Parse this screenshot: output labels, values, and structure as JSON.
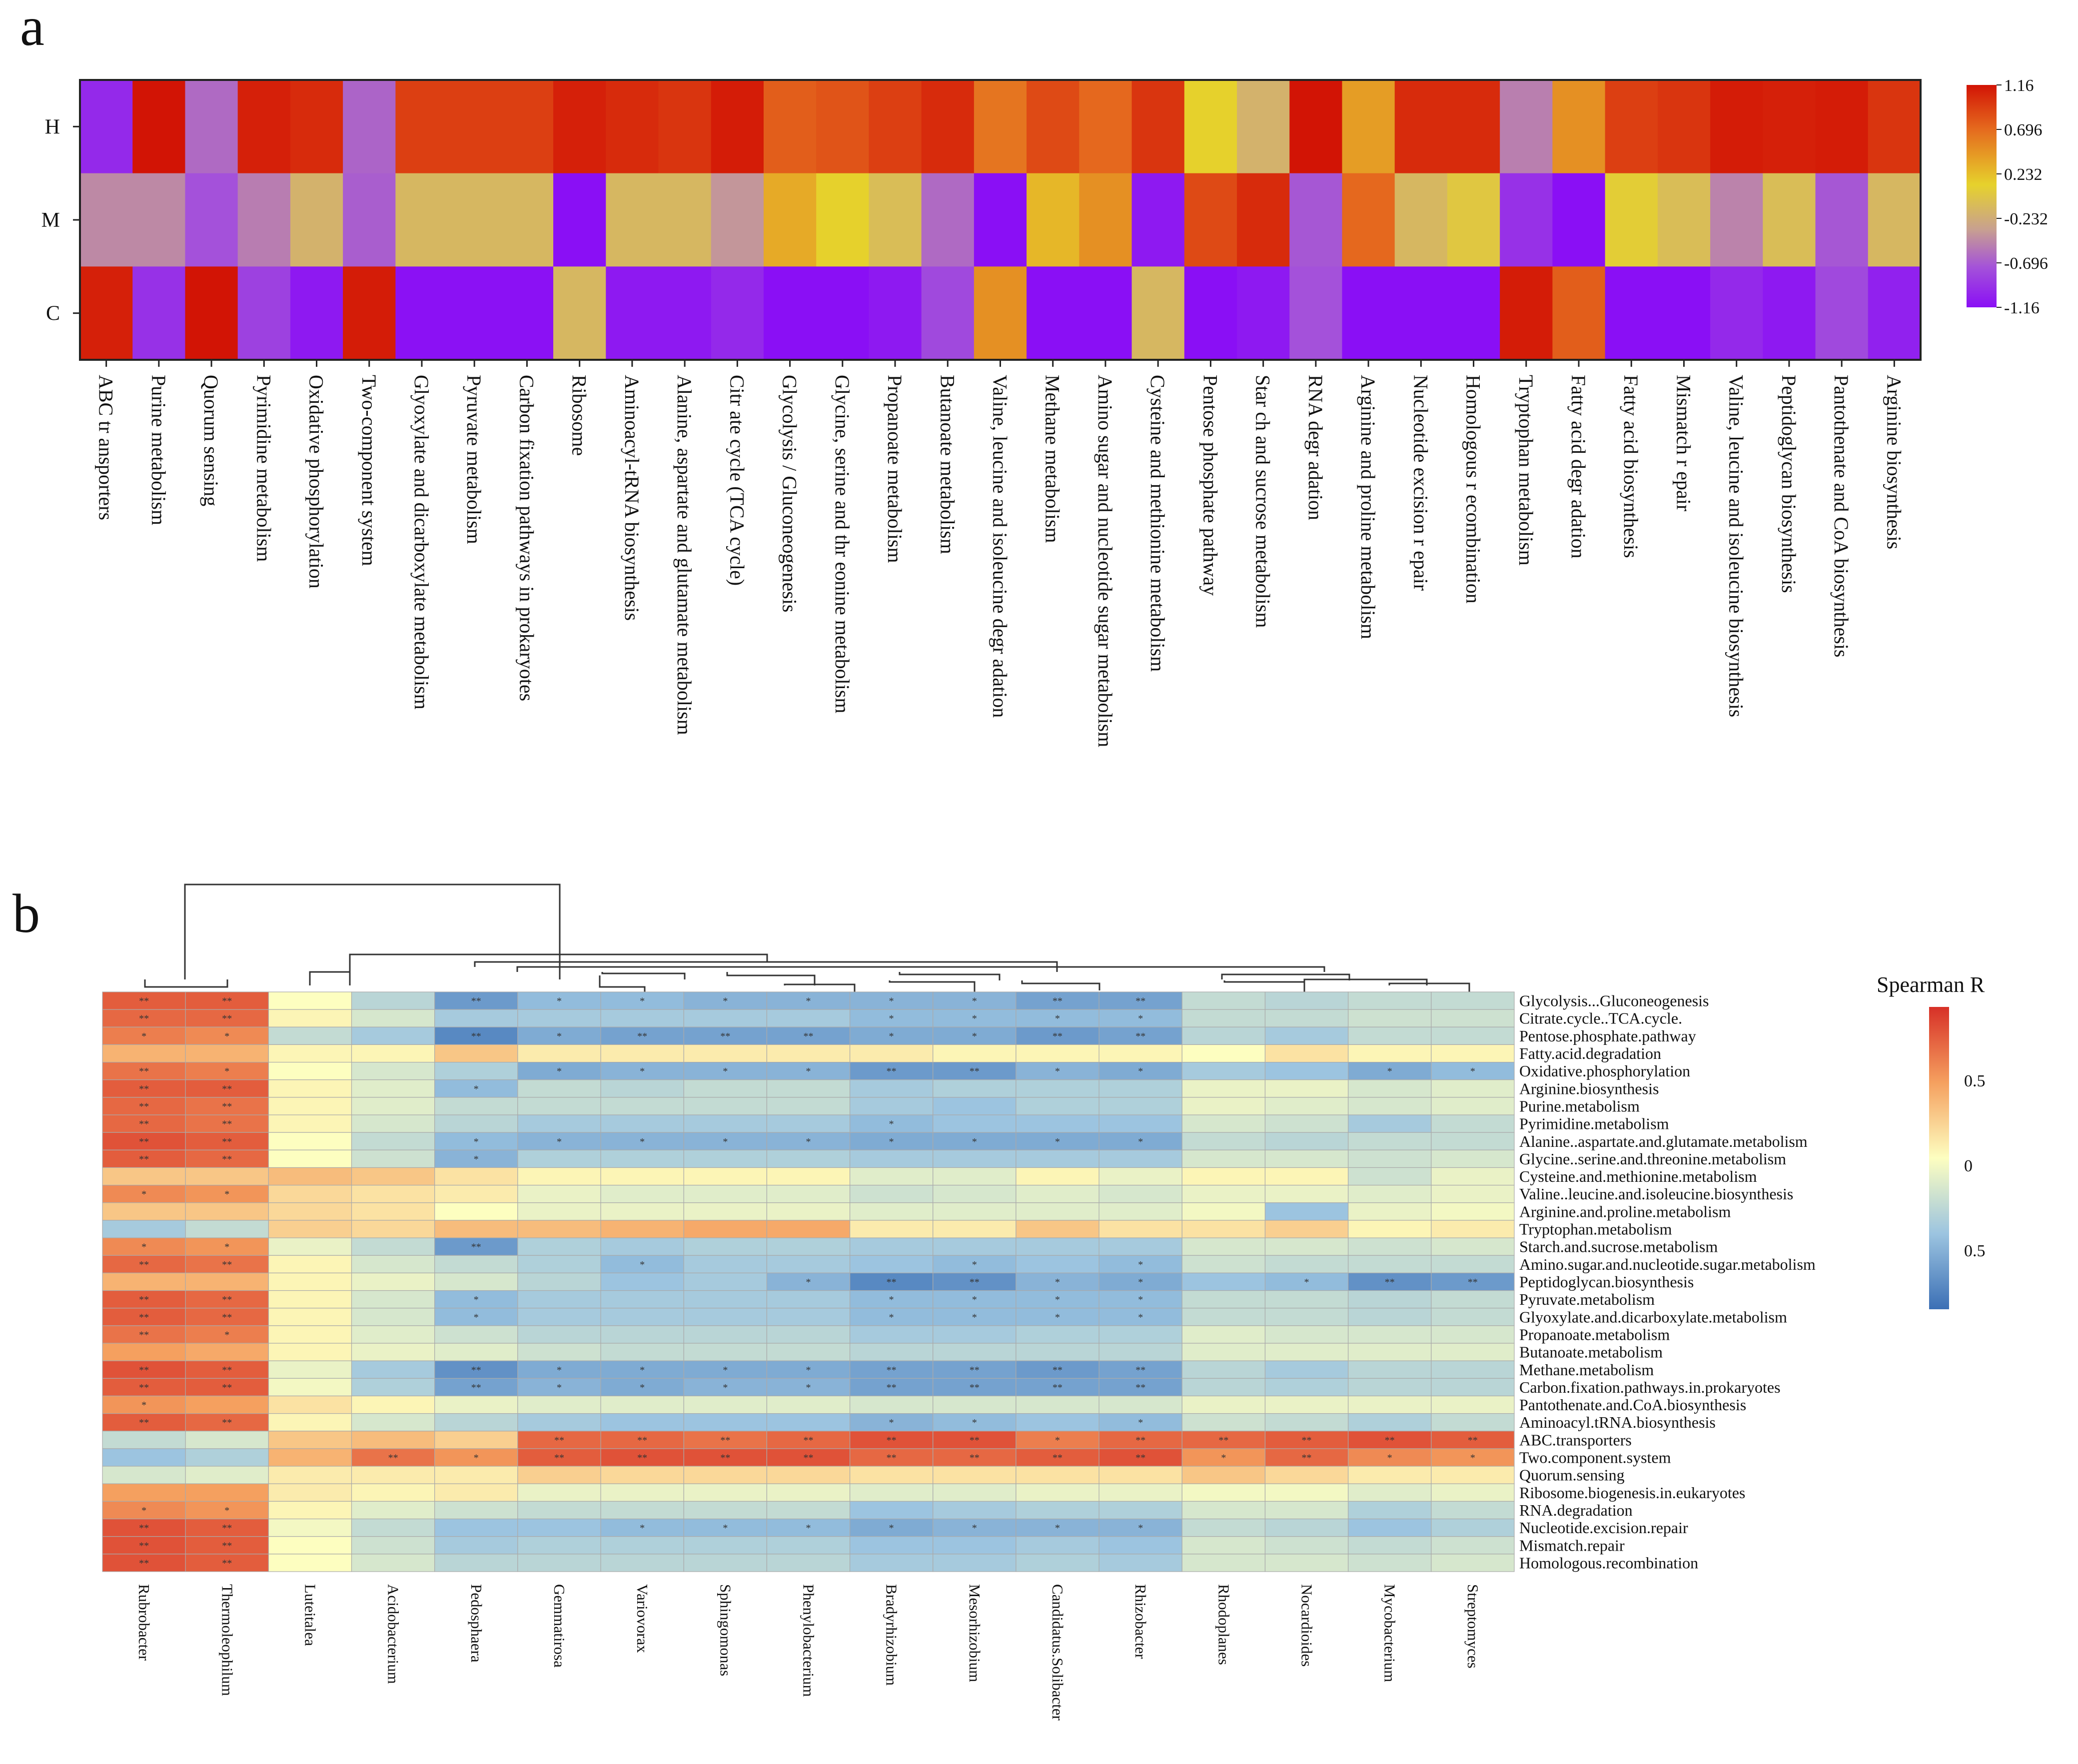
{
  "panel_a_letter": "a",
  "panel_b_letter": "b",
  "chart_data": [
    {
      "type": "heatmap",
      "panel": "a",
      "rows": [
        "H",
        "M",
        "C"
      ],
      "columns": [
        "ABC tr ansporters",
        "Purine metabolism",
        "Quorum sensing",
        "Pyrimidine metabolism",
        "Oxidative phosphorylation",
        "Two-component system",
        "Glyoxylate and dicarboxylate metabolism",
        "Pyruvate metabolism",
        "Carbon fixation pathways in prokaryotes",
        "Ribosome",
        "Aminoacyl-tRNA biosynthesis",
        "Alanine, aspartate and glutamate metabolism",
        "Citr ate cycle (TCA cycle)",
        "Glycolysis / Gluconeogenesis",
        "Glycine, serine and thr eonine metabolism",
        "Propanoate metabolism",
        "Butanoate metabolism",
        "Valine, leucine and isoleucine degr adation",
        "Methane metabolism",
        "Amino sugar and nucleotide sugar metabolism",
        "Cysteine and methionine metabolism",
        "Pentose phosphate pathway",
        "Star ch and sucrose metabolism",
        "RNA degr adation",
        "Arginine and proline metabolism",
        "Nucleotide excision r epair",
        "Homologous r ecombination",
        "Tryptophan metabolism",
        "Fatty acid degr adation",
        "Fatty acid biosynthesis",
        "Mismatch r epair",
        "Valine, leucine and isoleucine biosynthesis",
        "Peptidoglycan biosynthesis",
        "Pantothenate and CoA biosynthesis",
        "Arginine biosynthesis"
      ],
      "values": [
        [
          -1.0,
          1.16,
          -0.55,
          1.1,
          1.05,
          -0.6,
          0.95,
          0.95,
          0.95,
          1.1,
          1.05,
          1.0,
          1.12,
          0.8,
          0.85,
          0.95,
          1.05,
          0.7,
          0.9,
          0.75,
          1.0,
          0.35,
          0.05,
          1.16,
          0.55,
          1.05,
          1.05,
          -0.38,
          0.6,
          0.95,
          1.0,
          1.12,
          1.1,
          1.12,
          1.0
        ],
        [
          -0.3,
          -0.3,
          -0.75,
          -0.4,
          0.05,
          -0.65,
          0.1,
          0.1,
          0.1,
          -1.16,
          0.1,
          0.1,
          -0.2,
          0.5,
          0.35,
          0.15,
          -0.55,
          -1.16,
          0.45,
          0.6,
          -1.1,
          0.9,
          1.05,
          -0.7,
          0.75,
          0.1,
          0.25,
          -0.95,
          -1.16,
          0.3,
          0.15,
          -0.35,
          0.15,
          -0.7,
          0.1
        ],
        [
          1.1,
          -0.95,
          1.16,
          -0.85,
          -1.1,
          1.12,
          -1.15,
          -1.15,
          -1.15,
          0.1,
          -1.1,
          -1.1,
          -1.0,
          -1.16,
          -1.16,
          -1.1,
          -0.8,
          0.6,
          -1.16,
          -1.16,
          0.1,
          -1.16,
          -1.1,
          -0.75,
          -1.16,
          -1.16,
          -1.16,
          1.12,
          0.8,
          -1.16,
          -1.16,
          -1.0,
          -1.1,
          -0.8,
          -1.05
        ]
      ],
      "colorbar_ticks": [
        "1.16",
        "0.696",
        "0.232",
        "-0.232",
        "-0.696",
        "-1.16"
      ],
      "vmin": -1.16,
      "vmax": 1.16
    },
    {
      "type": "heatmap",
      "panel": "b",
      "legend_title": "Spearman R",
      "colorbar_ticks": [
        "0.5",
        "0",
        "0.5"
      ],
      "columns": [
        "Rubrobacter",
        "Thermoleophilum",
        "Luteitalea",
        "Acidobacterium",
        "Pedosphaera",
        "Gemmatirosa",
        "Variovorax",
        "Sphingomonas",
        "Phenylobacterium",
        "Bradyrhizobium",
        "Mesorhizobium",
        "Candidatus.Solibacter",
        "Rhizobacter",
        "Rhodoplanes",
        "Nocardioides",
        "Mycobacterium",
        "Streptomyces"
      ],
      "rows": [
        "Glycolysis...Gluconeogenesis",
        "Citrate.cycle..TCA.cycle.",
        "Pentose.phosphate.pathway",
        "Fatty.acid.degradation",
        "Oxidative.phosphorylation",
        "Arginine.biosynthesis",
        "Purine.metabolism",
        "Pyrimidine.metabolism",
        "Alanine..aspartate.and.glutamate.metabolism",
        "Glycine..serine.and.threonine.metabolism",
        "Cysteine.and.methionine.metabolism",
        "Valine..leucine.and.isoleucine.biosynthesis",
        "Arginine.and.proline.metabolism",
        "Tryptophan.metabolism",
        "Starch.and.sucrose.metabolism",
        "Amino.sugar.and.nucleotide.sugar.metabolism",
        "Peptidoglycan.biosynthesis",
        "Pyruvate.metabolism",
        "Glyoxylate.and.dicarboxylate.metabolism",
        "Propanoate.metabolism",
        "Butanoate.metabolism",
        "Methane.metabolism",
        "Carbon.fixation.pathways.in.prokaryotes",
        "Pantothenate.and.CoA.biosynthesis",
        "Aminoacyl.tRNA.biosynthesis",
        "ABC.transporters",
        "Two.component.system",
        "Quorum.sensing",
        "Ribosome.biogenesis.in.eukaryotes",
        "RNA.degradation",
        "Nucleotide.excision.repair",
        "Mismatch.repair",
        "Homologous.recombination"
      ],
      "values": [
        [
          0.8,
          0.8,
          0.0,
          -0.35,
          -0.75,
          -0.55,
          -0.55,
          -0.6,
          -0.6,
          -0.6,
          -0.6,
          -0.7,
          -0.7,
          -0.3,
          -0.35,
          -0.3,
          -0.3
        ],
        [
          0.75,
          0.75,
          0.05,
          -0.2,
          -0.45,
          -0.45,
          -0.45,
          -0.45,
          -0.45,
          -0.55,
          -0.55,
          -0.55,
          -0.55,
          -0.3,
          -0.3,
          -0.25,
          -0.25
        ],
        [
          0.65,
          0.6,
          -0.3,
          -0.45,
          -0.85,
          -0.65,
          -0.7,
          -0.7,
          -0.7,
          -0.65,
          -0.65,
          -0.75,
          -0.7,
          -0.35,
          -0.45,
          -0.3,
          -0.3
        ],
        [
          0.4,
          0.4,
          0.05,
          0.05,
          0.3,
          0.1,
          0.1,
          0.1,
          0.1,
          0.1,
          0.05,
          0.05,
          0.05,
          0.0,
          0.15,
          0.05,
          0.05
        ],
        [
          0.7,
          0.65,
          0.0,
          -0.2,
          -0.4,
          -0.65,
          -0.6,
          -0.6,
          -0.6,
          -0.75,
          -0.75,
          -0.6,
          -0.65,
          -0.45,
          -0.5,
          -0.65,
          -0.55
        ],
        [
          0.8,
          0.8,
          0.05,
          -0.15,
          -0.55,
          -0.3,
          -0.35,
          -0.3,
          -0.3,
          -0.45,
          -0.4,
          -0.4,
          -0.4,
          -0.1,
          -0.1,
          -0.2,
          -0.15
        ],
        [
          0.75,
          0.7,
          0.05,
          -0.15,
          -0.3,
          -0.3,
          -0.3,
          -0.3,
          -0.3,
          -0.45,
          -0.5,
          -0.4,
          -0.4,
          -0.1,
          -0.15,
          -0.2,
          -0.15
        ],
        [
          0.75,
          0.7,
          0.05,
          -0.2,
          -0.35,
          -0.45,
          -0.45,
          -0.45,
          -0.45,
          -0.55,
          -0.5,
          -0.5,
          -0.5,
          -0.2,
          -0.25,
          -0.45,
          -0.3
        ],
        [
          0.85,
          0.8,
          0.0,
          -0.3,
          -0.55,
          -0.6,
          -0.6,
          -0.6,
          -0.6,
          -0.65,
          -0.65,
          -0.65,
          -0.65,
          -0.3,
          -0.35,
          -0.3,
          -0.3
        ],
        [
          0.8,
          0.75,
          0.0,
          -0.25,
          -0.6,
          -0.4,
          -0.4,
          -0.4,
          -0.4,
          -0.45,
          -0.45,
          -0.45,
          -0.45,
          -0.2,
          -0.2,
          -0.25,
          -0.2
        ],
        [
          0.3,
          0.3,
          0.35,
          0.3,
          0.15,
          0.05,
          0.05,
          0.05,
          0.05,
          -0.15,
          -0.15,
          0.05,
          -0.1,
          0.05,
          0.05,
          -0.25,
          -0.1
        ],
        [
          0.6,
          0.55,
          0.2,
          0.15,
          0.1,
          -0.1,
          -0.15,
          -0.15,
          -0.15,
          -0.25,
          -0.2,
          -0.15,
          -0.2,
          -0.1,
          -0.1,
          -0.15,
          -0.1
        ],
        [
          0.3,
          0.3,
          0.2,
          0.15,
          0.0,
          -0.1,
          -0.1,
          -0.1,
          -0.1,
          -0.15,
          -0.15,
          -0.15,
          -0.15,
          -0.05,
          -0.5,
          -0.1,
          -0.05
        ],
        [
          -0.45,
          -0.3,
          0.25,
          0.2,
          0.35,
          0.35,
          0.4,
          0.45,
          0.45,
          0.1,
          0.1,
          0.3,
          0.15,
          0.15,
          0.25,
          0.05,
          0.1
        ],
        [
          0.6,
          0.55,
          -0.1,
          -0.3,
          -0.75,
          -0.4,
          -0.45,
          -0.4,
          -0.4,
          -0.45,
          -0.45,
          -0.45,
          -0.45,
          -0.2,
          -0.2,
          -0.25,
          -0.2
        ],
        [
          0.75,
          0.7,
          0.05,
          -0.2,
          -0.3,
          -0.4,
          -0.55,
          -0.45,
          -0.45,
          -0.5,
          -0.55,
          -0.5,
          -0.55,
          -0.25,
          -0.3,
          -0.3,
          -0.3
        ],
        [
          0.4,
          0.4,
          0.05,
          -0.1,
          -0.2,
          -0.35,
          -0.5,
          -0.45,
          -0.6,
          -0.85,
          -0.8,
          -0.6,
          -0.65,
          -0.5,
          -0.55,
          -0.8,
          -0.75
        ],
        [
          0.8,
          0.75,
          0.05,
          -0.2,
          -0.55,
          -0.45,
          -0.45,
          -0.45,
          -0.45,
          -0.55,
          -0.55,
          -0.55,
          -0.55,
          -0.3,
          -0.3,
          -0.35,
          -0.3
        ],
        [
          0.8,
          0.75,
          0.05,
          -0.2,
          -0.55,
          -0.45,
          -0.45,
          -0.45,
          -0.45,
          -0.55,
          -0.55,
          -0.55,
          -0.55,
          -0.3,
          -0.3,
          -0.35,
          -0.3
        ],
        [
          0.7,
          0.65,
          0.05,
          -0.15,
          -0.25,
          -0.35,
          -0.35,
          -0.35,
          -0.35,
          -0.45,
          -0.45,
          -0.4,
          -0.4,
          -0.15,
          -0.2,
          -0.2,
          -0.2
        ],
        [
          0.5,
          0.45,
          0.05,
          -0.1,
          -0.15,
          -0.25,
          -0.3,
          -0.3,
          -0.3,
          -0.35,
          -0.35,
          -0.35,
          -0.35,
          -0.15,
          -0.15,
          -0.15,
          -0.15
        ],
        [
          0.85,
          0.8,
          -0.1,
          -0.45,
          -0.8,
          -0.65,
          -0.65,
          -0.65,
          -0.65,
          -0.7,
          -0.7,
          -0.75,
          -0.7,
          -0.35,
          -0.45,
          -0.35,
          -0.35
        ],
        [
          0.8,
          0.8,
          -0.05,
          -0.4,
          -0.7,
          -0.6,
          -0.65,
          -0.6,
          -0.6,
          -0.7,
          -0.7,
          -0.7,
          -0.7,
          -0.35,
          -0.4,
          -0.35,
          -0.35
        ],
        [
          0.55,
          0.5,
          0.15,
          0.05,
          -0.1,
          -0.15,
          -0.15,
          -0.15,
          -0.15,
          -0.2,
          -0.2,
          -0.2,
          -0.2,
          -0.1,
          -0.1,
          -0.1,
          -0.1
        ],
        [
          0.8,
          0.75,
          0.05,
          -0.2,
          -0.35,
          -0.45,
          -0.5,
          -0.5,
          -0.5,
          -0.6,
          -0.55,
          -0.5,
          -0.55,
          -0.25,
          -0.3,
          -0.4,
          -0.3
        ],
        [
          -0.3,
          -0.2,
          0.3,
          0.35,
          0.25,
          0.75,
          0.75,
          0.7,
          0.75,
          0.85,
          0.85,
          0.65,
          0.75,
          0.75,
          0.8,
          0.85,
          0.8
        ],
        [
          -0.5,
          -0.4,
          0.4,
          0.7,
          0.55,
          0.8,
          0.85,
          0.85,
          0.85,
          0.75,
          0.75,
          0.8,
          0.85,
          0.55,
          0.75,
          0.6,
          0.55
        ],
        [
          -0.2,
          -0.15,
          0.1,
          0.1,
          0.1,
          0.25,
          0.2,
          0.2,
          0.2,
          0.15,
          0.15,
          0.15,
          0.15,
          0.3,
          0.2,
          0.1,
          0.1
        ],
        [
          0.5,
          0.5,
          0.1,
          0.05,
          0.1,
          -0.1,
          -0.1,
          -0.1,
          -0.1,
          -0.15,
          -0.15,
          -0.1,
          -0.1,
          -0.05,
          -0.05,
          -0.15,
          -0.1
        ],
        [
          0.6,
          0.55,
          0.05,
          -0.15,
          -0.25,
          -0.3,
          -0.3,
          -0.3,
          -0.3,
          -0.5,
          -0.45,
          -0.4,
          -0.4,
          -0.2,
          -0.2,
          -0.4,
          -0.3
        ],
        [
          0.85,
          0.8,
          -0.05,
          -0.3,
          -0.5,
          -0.5,
          -0.55,
          -0.55,
          -0.55,
          -0.65,
          -0.6,
          -0.6,
          -0.6,
          -0.3,
          -0.35,
          -0.5,
          -0.4
        ],
        [
          0.85,
          0.8,
          0.0,
          -0.25,
          -0.45,
          -0.4,
          -0.4,
          -0.4,
          -0.4,
          -0.5,
          -0.5,
          -0.45,
          -0.5,
          -0.2,
          -0.25,
          -0.3,
          -0.25
        ],
        [
          0.85,
          0.8,
          0.0,
          -0.2,
          -0.35,
          -0.35,
          -0.35,
          -0.35,
          -0.35,
          -0.45,
          -0.45,
          -0.4,
          -0.45,
          -0.2,
          -0.2,
          -0.25,
          -0.2
        ]
      ],
      "vmin": -1,
      "vmax": 1
    }
  ],
  "colors": {
    "a_scale": [
      "#8a0ff5",
      "#a452d9",
      "#c8a090",
      "#e6d22c",
      "#e56a1e",
      "#d21405"
    ],
    "b_scale": [
      "#3b6fb5",
      "#9cc4e0",
      "#fdfec0",
      "#f5a05f",
      "#d73027"
    ]
  }
}
